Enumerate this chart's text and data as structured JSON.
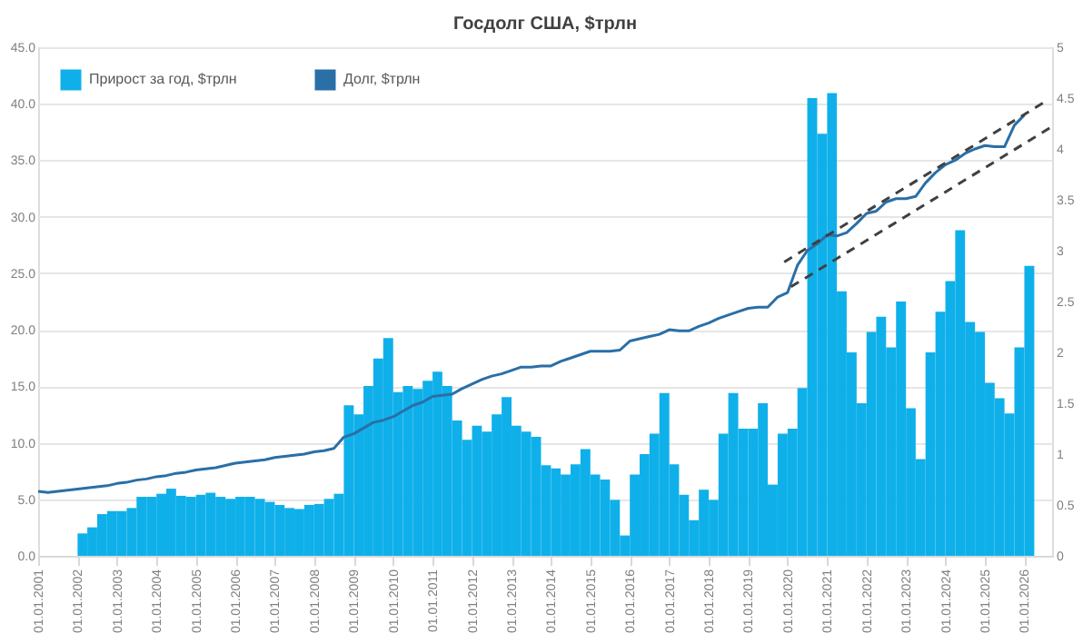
{
  "chart_data": {
    "type": "bar",
    "title": "Госдолг США, $трлн",
    "x": [
      "2001-01",
      "2001-04",
      "2001-07",
      "2001-10",
      "2002-01",
      "2002-04",
      "2002-07",
      "2002-10",
      "2003-01",
      "2003-04",
      "2003-07",
      "2003-10",
      "2004-01",
      "2004-04",
      "2004-07",
      "2004-10",
      "2005-01",
      "2005-04",
      "2005-07",
      "2005-10",
      "2006-01",
      "2006-04",
      "2006-07",
      "2006-10",
      "2007-01",
      "2007-04",
      "2007-07",
      "2007-10",
      "2008-01",
      "2008-04",
      "2008-07",
      "2008-10",
      "2009-01",
      "2009-04",
      "2009-07",
      "2009-10",
      "2010-01",
      "2010-04",
      "2010-07",
      "2010-10",
      "2011-01",
      "2011-04",
      "2011-07",
      "2011-10",
      "2012-01",
      "2012-04",
      "2012-07",
      "2012-10",
      "2013-01",
      "2013-04",
      "2013-07",
      "2013-10",
      "2014-01",
      "2014-04",
      "2014-07",
      "2014-10",
      "2015-01",
      "2015-04",
      "2015-07",
      "2015-10",
      "2016-01",
      "2016-04",
      "2016-07",
      "2016-10",
      "2017-01",
      "2017-04",
      "2017-07",
      "2017-10",
      "2018-01",
      "2018-04",
      "2018-07",
      "2018-10",
      "2019-01",
      "2019-04",
      "2019-07",
      "2019-10",
      "2020-01",
      "2020-04",
      "2020-07",
      "2020-10",
      "2021-01",
      "2021-04",
      "2021-07",
      "2021-10",
      "2022-01",
      "2022-04",
      "2022-07",
      "2022-10",
      "2023-01",
      "2023-04",
      "2023-07",
      "2023-10",
      "2024-01",
      "2024-04",
      "2024-07",
      "2024-10",
      "2025-01",
      "2025-04",
      "2025-07",
      "2025-10",
      "2026-01"
    ],
    "series": [
      {
        "name": "Прирост за год, $трлн",
        "axis": "y2",
        "color": "#0fb0ea",
        "values": [
          null,
          null,
          null,
          null,
          0.22,
          0.28,
          0.41,
          0.44,
          0.44,
          0.47,
          0.58,
          0.58,
          0.61,
          0.66,
          0.59,
          0.58,
          0.6,
          0.62,
          0.58,
          0.56,
          0.58,
          0.58,
          0.56,
          0.53,
          0.5,
          0.47,
          0.46,
          0.5,
          0.51,
          0.56,
          0.61,
          1.48,
          1.39,
          1.67,
          1.94,
          2.14,
          1.61,
          1.67,
          1.64,
          1.72,
          1.81,
          1.67,
          1.33,
          1.14,
          1.28,
          1.22,
          1.39,
          1.56,
          1.28,
          1.22,
          1.17,
          0.89,
          0.86,
          0.8,
          0.9,
          1.05,
          0.8,
          0.75,
          0.55,
          0.2,
          0.8,
          1.0,
          1.2,
          1.6,
          0.9,
          0.6,
          0.35,
          0.65,
          0.55,
          1.2,
          1.6,
          1.25,
          1.25,
          1.5,
          0.7,
          1.2,
          1.25,
          1.65,
          4.5,
          4.15,
          4.55,
          2.6,
          2.0,
          1.5,
          2.2,
          2.35,
          2.05,
          2.5,
          1.45,
          0.95,
          2.0,
          2.4,
          2.7,
          3.2,
          2.3,
          2.2,
          1.7,
          1.55,
          1.4,
          2.05,
          2.85
        ]
      },
      {
        "name": "Долг, $трлн",
        "type": "line",
        "color": "#2a6fa6",
        "values": [
          5.7,
          5.6,
          5.7,
          5.8,
          5.9,
          6.0,
          6.1,
          6.2,
          6.4,
          6.5,
          6.7,
          6.8,
          7.0,
          7.1,
          7.3,
          7.4,
          7.6,
          7.7,
          7.8,
          8.0,
          8.2,
          8.3,
          8.4,
          8.5,
          8.7,
          8.8,
          8.9,
          9.0,
          9.2,
          9.3,
          9.5,
          10.5,
          10.8,
          11.3,
          11.8,
          12.0,
          12.3,
          12.8,
          13.3,
          13.6,
          14.1,
          14.2,
          14.3,
          14.8,
          15.2,
          15.6,
          15.9,
          16.1,
          16.4,
          16.7,
          16.7,
          16.8,
          16.8,
          17.2,
          17.5,
          17.8,
          18.1,
          18.1,
          18.1,
          18.2,
          19.0,
          19.2,
          19.4,
          19.6,
          20.0,
          19.9,
          19.9,
          20.3,
          20.6,
          21.0,
          21.3,
          21.6,
          21.9,
          22.0,
          22.0,
          22.9,
          23.3,
          25.7,
          27.0,
          27.6,
          28.4,
          28.3,
          28.6,
          29.4,
          30.3,
          30.5,
          31.3,
          31.6,
          31.6,
          31.8,
          33.0,
          33.9,
          34.6,
          35.0,
          35.6,
          36.0,
          36.3,
          36.2,
          36.2,
          38.1,
          39.0
        ]
      },
      {
        "type": "line",
        "line_style": "dashed",
        "color": "#404040",
        "x": [
          "2019-12",
          "2026-08"
        ],
        "values": [
          26.0,
          40.3
        ]
      },
      {
        "type": "line",
        "line_style": "dashed",
        "color": "#404040",
        "x": [
          "2020-02",
          "2026-09"
        ],
        "values": [
          23.8,
          37.9
        ]
      }
    ],
    "xlim": [
      "2001-01-01",
      "2026-09-15"
    ],
    "xticks": [
      {
        "value": "2001-01-01",
        "label": "01.01.2001"
      },
      {
        "value": "2002-01-01",
        "label": "01.01.2002"
      },
      {
        "value": "2003-01-01",
        "label": "01.01.2003"
      },
      {
        "value": "2004-01-01",
        "label": "01.01.2004"
      },
      {
        "value": "2005-01-01",
        "label": "01.01.2005"
      },
      {
        "value": "2006-01-01",
        "label": "01.01.2006"
      },
      {
        "value": "2007-01-01",
        "label": "01.01.2007"
      },
      {
        "value": "2008-01-01",
        "label": "01.01.2008"
      },
      {
        "value": "2009-01-01",
        "label": "01.01.2009"
      },
      {
        "value": "2010-01-01",
        "label": "01.01.2010"
      },
      {
        "value": "2011-01-01",
        "label": "01.01.2011"
      },
      {
        "value": "2012-01-01",
        "label": "01.01.2012"
      },
      {
        "value": "2013-01-01",
        "label": "01.01.2013"
      },
      {
        "value": "2014-01-01",
        "label": "01.01.2014"
      },
      {
        "value": "2015-01-01",
        "label": "01.01.2015"
      },
      {
        "value": "2016-01-01",
        "label": "01.01.2016"
      },
      {
        "value": "2017-01-01",
        "label": "01.01.2017"
      },
      {
        "value": "2018-01-01",
        "label": "01.01.2018"
      },
      {
        "value": "2019-01-01",
        "label": "01.01.2019"
      },
      {
        "value": "2020-01-01",
        "label": "01.01.2020"
      },
      {
        "value": "2021-01-01",
        "label": "01.01.2021"
      },
      {
        "value": "2022-01-01",
        "label": "01.01.2022"
      },
      {
        "value": "2023-01-01",
        "label": "01.01.2023"
      },
      {
        "value": "2024-01-01",
        "label": "01.01.2024"
      },
      {
        "value": "2025-01-01",
        "label": "01.01.2025"
      },
      {
        "value": "2026-01-01",
        "label": "01.01.2026"
      }
    ],
    "ylim": [
      0,
      45
    ],
    "yticks": [
      {
        "value": 0,
        "label": "0.0"
      },
      {
        "value": 5,
        "label": "5.0"
      },
      {
        "value": 10,
        "label": "10.0"
      },
      {
        "value": 15,
        "label": "15.0"
      },
      {
        "value": 20,
        "label": "20.0"
      },
      {
        "value": 25,
        "label": "25.0"
      },
      {
        "value": 30,
        "label": "30.0"
      },
      {
        "value": 35,
        "label": "35.0"
      },
      {
        "value": 40,
        "label": "40.0"
      },
      {
        "value": 45,
        "label": "45.0"
      }
    ],
    "y2lim": [
      0,
      5
    ],
    "y2ticks": [
      0,
      0.5,
      1,
      1.5,
      2,
      2.5,
      3,
      3.5,
      4,
      4.5,
      5
    ],
    "grid": "y",
    "legend": "top left",
    "marker": "none"
  }
}
